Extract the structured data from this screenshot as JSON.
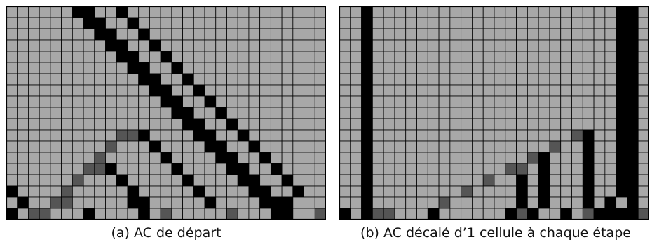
{
  "captions": {
    "a": "(a) AC de départ",
    "b": "(b) AC décalé d’1 cellule à chaque étape"
  },
  "colors": {
    "empty": "#a8a8a8",
    "black": "#000000",
    "dark": "#555555",
    "grid": "#000000"
  },
  "legend": {
    "#": "black",
    "d": "dark",
    ".": "empty"
  },
  "automaton_a": {
    "rows": [
      "......##..#..................",
      ".......##..#.................",
      "........##..#................",
      ".........##..#...............",
      "..........##..#..............",
      "...........##..#.............",
      "............##..#............",
      ".............##..#...........",
      "..............##..#..........",
      "...............##..#.........",
      "................##..#........",
      "..........dd#....##..#.......",
      ".........d...#....##..#......",
      "........d.....#....##..#.....",
      ".......dd#.....#....##..#....",
      "......d...#.....#....##..#...",
      "#....d.....#.....#....##..#..",
      ".#..dd.....##.....#....###...",
      "#.dd...#....#.d.....d...##..d"
    ]
  },
  "automaton_b": {
    "rows": [
      "..#......................##.",
      "..#......................##.",
      "..#......................##.",
      "..#......................##.",
      "..#......................##.",
      "..#......................##.",
      "..#......................##.",
      "..#......................##.",
      "..#......................##.",
      "..#......................##.",
      "..#......................##.",
      "..#..................d#..##.",
      "..#................d..#..##.",
      "..#..............d#...#..##.",
      "..#............dd.#...#..##.",
      "..#..........d..#.#...#..##.",
      "..#........d....#.#...#..##.",
      "..#......d......#.#...#.#.#.",
      "#.#dd...#......#d#..#.d####d"
    ]
  }
}
